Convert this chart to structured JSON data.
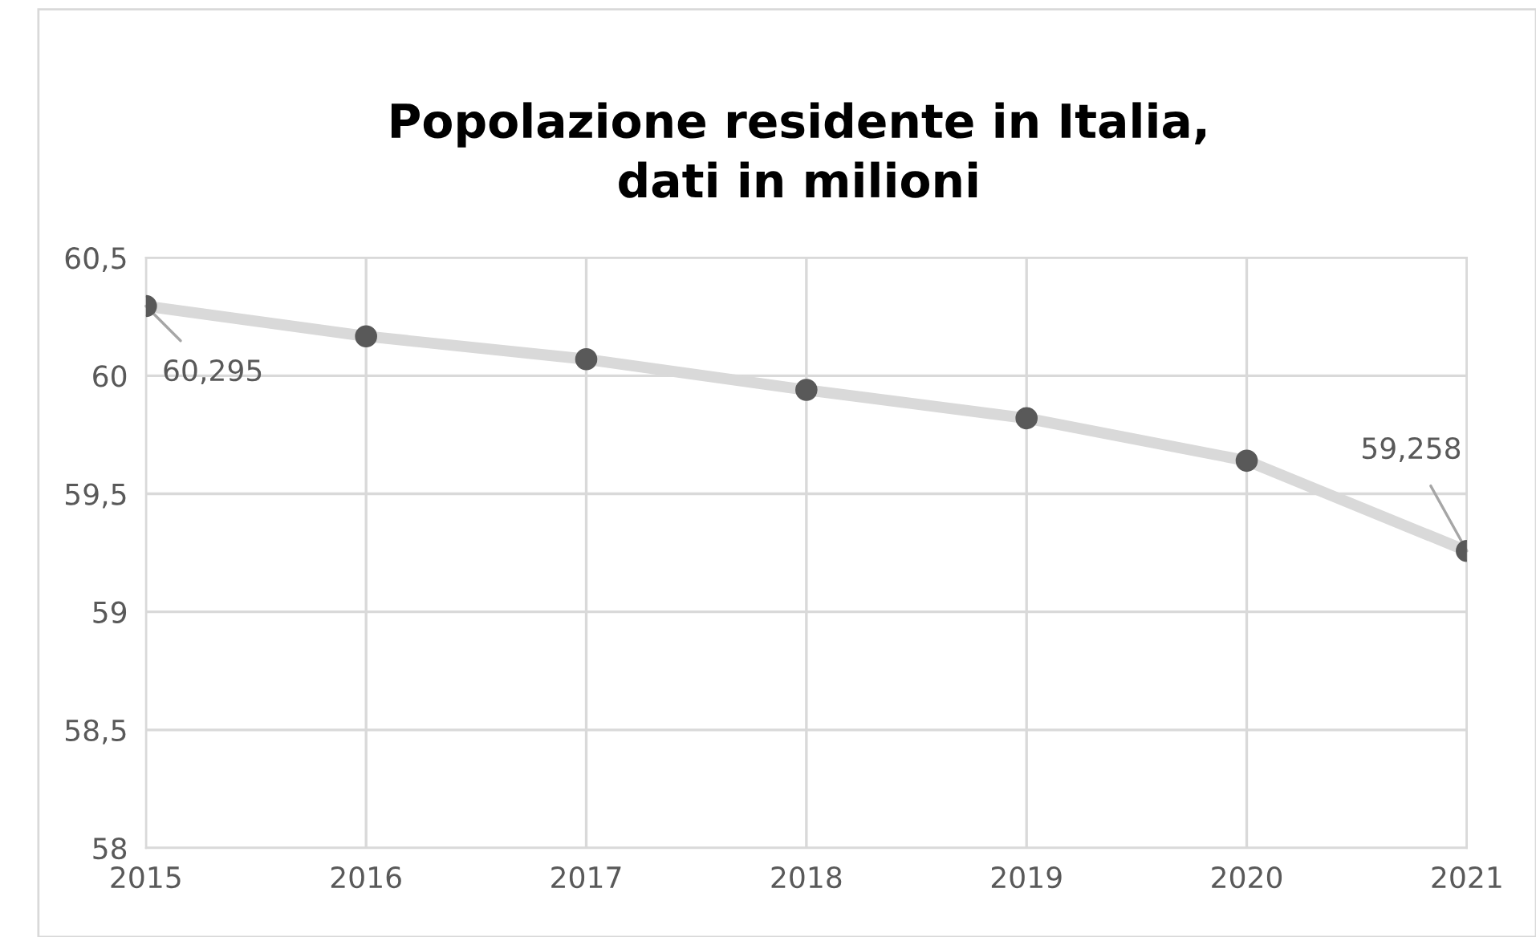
{
  "chart_data": {
    "type": "line",
    "title": "Popolazione residente in Italia,\ndati in milioni",
    "categories": [
      "2015",
      "2016",
      "2017",
      "2018",
      "2019",
      "2020",
      "2021"
    ],
    "series": [
      {
        "color": "#d9d9d9",
        "values": [
          60.295,
          60.167,
          60.07,
          59.94,
          59.82,
          59.64,
          59.258
        ]
      }
    ],
    "annotations": [
      {
        "text": "60,295",
        "x": "2015",
        "y": 60.295
      },
      {
        "text": "59,258",
        "x": "2021",
        "y": 59.258
      }
    ],
    "ylim": [
      58,
      60.5
    ],
    "yticks": [
      {
        "value": 58,
        "label": "58"
      },
      {
        "value": 58.5,
        "label": "58,5"
      },
      {
        "value": 59,
        "label": "59"
      },
      {
        "value": 59.5,
        "label": "59,5"
      },
      {
        "value": 60,
        "label": "60"
      },
      {
        "value": 60.5,
        "label": "60,5"
      }
    ],
    "grid": true,
    "marker": "circle",
    "line_style": "solid",
    "legend": false
  }
}
